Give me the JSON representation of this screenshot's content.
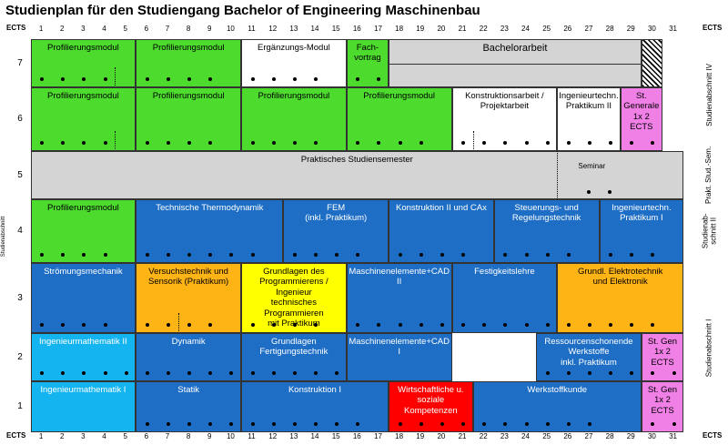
{
  "title": "Studienplan für den Studiengang Bachelor of Engineering Maschinenbau",
  "ects_label": "ECTS",
  "ects_columns": [
    "1",
    "2",
    "3",
    "4",
    "5",
    "6",
    "7",
    "8",
    "9",
    "10",
    "11",
    "12",
    "13",
    "14",
    "15",
    "16",
    "17",
    "18",
    "19",
    "20",
    "21",
    "22",
    "23",
    "24",
    "25",
    "26",
    "27",
    "28",
    "29",
    "30",
    "31"
  ],
  "semesters": [
    "7",
    "6",
    "5",
    "4",
    "3",
    "2",
    "1"
  ],
  "side_label": "Studienabschnitt",
  "lanes": [
    {
      "label": "Studienabschnitt IV"
    },
    {
      "label": "Prakt. Stud.-Sem."
    },
    {
      "label": "Studienab-\nschnitt II"
    },
    {
      "label": "Studienabschnitt I"
    }
  ],
  "colors": {
    "green": "#4ddc2e",
    "white": "#ffffff",
    "gray": "#d4d4d4",
    "blue": "#1e6ec6",
    "orange": "#ffb416",
    "yellow": "#ffff00",
    "lightblue": "#14b4f0",
    "magenta": "#f080e6",
    "red": "#ff0000"
  },
  "modules": [
    {
      "label": "Profilierungsmodul",
      "color": "green",
      "sem": 7,
      "start": 1,
      "end": 5,
      "span": 1,
      "dots": 4
    },
    {
      "label": "Profilierungsmodul",
      "color": "green",
      "sem": 7,
      "start": 6,
      "end": 10,
      "span": 1,
      "dots": 4
    },
    {
      "label": "Ergänzungs-Modul",
      "color": "white",
      "sem": 7,
      "start": 11,
      "end": 15,
      "span": 1,
      "dots": 4
    },
    {
      "label": "Fach-\nvortrag",
      "color": "green",
      "sem": 7,
      "start": 16,
      "end": 17,
      "span": 1,
      "dots": 2
    },
    {
      "label": "Bachelorarbeit",
      "color": "gray",
      "sem": 7,
      "start": 18,
      "end": 29,
      "span": 1,
      "dots": 0
    },
    {
      "label": "Profilierungsmodul",
      "color": "green",
      "sem": 6,
      "start": 1,
      "end": 5,
      "span": 1,
      "dots": 4
    },
    {
      "label": "Profilierungsmodul",
      "color": "green",
      "sem": 6,
      "start": 6,
      "end": 10,
      "span": 1,
      "dots": 4
    },
    {
      "label": "Profilierungsmodul",
      "color": "green",
      "sem": 6,
      "start": 11,
      "end": 15,
      "span": 1,
      "dots": 4
    },
    {
      "label": "Profilierungsmodul",
      "color": "green",
      "sem": 6,
      "start": 16,
      "end": 20,
      "span": 1,
      "dots": 4
    },
    {
      "label": "Konstruktionsarbeit /\nProjektarbeit",
      "color": "white",
      "sem": 6,
      "start": 21,
      "end": 25,
      "span": 1,
      "dots": 5
    },
    {
      "label": "Ingenieurtechn.\nPraktikum II",
      "color": "white",
      "sem": 6,
      "start": 26,
      "end": 28,
      "span": 1,
      "dots": 3
    },
    {
      "label": "St.\nGenerale\n1x 2 ECTS",
      "color": "magenta",
      "sem": 6,
      "start": 29,
      "end": 30,
      "span": 1,
      "dots": 2
    },
    {
      "label": "Praktisches Studiensemester",
      "color": "gray",
      "sem": 5,
      "start": 1,
      "end": 31,
      "span": 1,
      "dots": 0
    },
    {
      "label": "Profilierungsmodul",
      "color": "green",
      "sem": 4,
      "start": 1,
      "end": 5,
      "span": 1,
      "dots": 4
    },
    {
      "label": "Technische Thermodynamik",
      "color": "blue",
      "sem": 4,
      "start": 6,
      "end": 12,
      "span": 1,
      "dots": 6
    },
    {
      "label": "FEM\n(inkl. Praktikum)",
      "color": "blue",
      "sem": 4,
      "start": 13,
      "end": 17,
      "span": 1,
      "dots": 4
    },
    {
      "label": "Konstruktion II und CAx",
      "color": "blue",
      "sem": 4,
      "start": 18,
      "end": 22,
      "span": 1,
      "dots": 4
    },
    {
      "label": "Steuerungs- und\nRegelungstechnik",
      "color": "blue",
      "sem": 4,
      "start": 23,
      "end": 27,
      "span": 1,
      "dots": 4
    },
    {
      "label": "Ingenieurtechn.\nPraktikum I",
      "color": "blue",
      "sem": 4,
      "start": 28,
      "end": 31,
      "span": 1,
      "dots": 3
    },
    {
      "label": "Strömungsmechanik",
      "color": "blue",
      "sem": 3,
      "start": 1,
      "end": 5,
      "span": 1,
      "dots": 4
    },
    {
      "label": "Versuchstechnik und\nSensorik (Praktikum)",
      "color": "orange",
      "sem": 3,
      "start": 6,
      "end": 10,
      "span": 1,
      "dots": 4
    },
    {
      "label": "Grundlagen des\nProgrammierens / Ingenieur\ntechnisches Programmieren\nmit Praktikum",
      "color": "yellow",
      "sem": 3,
      "start": 11,
      "end": 15,
      "span": 1,
      "dots": 4
    },
    {
      "label": "Maschinenelemente+CAD II",
      "color": "blue",
      "sem": 3,
      "start": 16,
      "end": 20,
      "span": 1,
      "dots": 5
    },
    {
      "label": "Festigkeitslehre",
      "color": "blue",
      "sem": 3,
      "start": 21,
      "end": 25,
      "span": 1,
      "dots": 5
    },
    {
      "label": "Grundl. Elektrotechnik\nund Elektronik",
      "color": "orange",
      "sem": 3,
      "start": 26,
      "end": 31,
      "span": 1,
      "dots": 5
    },
    {
      "label": "Ingenieurmathematik II",
      "color": "lightblue",
      "sem": 2,
      "start": 1,
      "end": 5,
      "span": 1,
      "dots": 5
    },
    {
      "label": "Dynamik",
      "color": "blue",
      "sem": 2,
      "start": 6,
      "end": 10,
      "span": 1,
      "dots": 5
    },
    {
      "label": "Grundlagen\nFertigungstechnik",
      "color": "blue",
      "sem": 2,
      "start": 11,
      "end": 15,
      "span": 1,
      "dots": 5
    },
    {
      "label": "Maschinenelemente+CAD I",
      "color": "blue",
      "sem": 2,
      "start": 16,
      "end": 20,
      "span": 1,
      "dots": 0
    },
    {
      "label": "Ressourcenschonende Werkstoffe\ninkl. Praktikum",
      "color": "blue",
      "sem": 2,
      "start": 25,
      "end": 29,
      "span": 1,
      "dots": 5
    },
    {
      "label": "St. Gen\n1x 2 ECTS",
      "color": "magenta",
      "sem": 2,
      "start": 30,
      "end": 31,
      "span": 1,
      "dots": 2
    },
    {
      "label": "Ingenieurmathematik I",
      "color": "lightblue",
      "sem": 1,
      "start": 1,
      "end": 5,
      "span": 1,
      "dots": 0
    },
    {
      "label": "Statik",
      "color": "blue",
      "sem": 1,
      "start": 6,
      "end": 10,
      "span": 1,
      "dots": 5
    },
    {
      "label": "Konstruktion I",
      "color": "blue",
      "sem": 1,
      "start": 11,
      "end": 17,
      "span": 1,
      "dots": 6
    },
    {
      "label": "Wirtschaftliche u. soziale\nKompetenzen",
      "color": "red",
      "sem": 1,
      "start": 18,
      "end": 21,
      "span": 1,
      "dots": 4
    },
    {
      "label": "Werkstoffkunde",
      "color": "blue",
      "sem": 1,
      "start": 22,
      "end": 29,
      "span": 1,
      "dots": 6
    },
    {
      "label": "St. Gen\n1x 2 ECTS",
      "color": "magenta",
      "sem": 1,
      "start": 30,
      "end": 31,
      "span": 1,
      "dots": 2
    }
  ],
  "seminar": {
    "label": "Seminar",
    "color": "gray"
  }
}
